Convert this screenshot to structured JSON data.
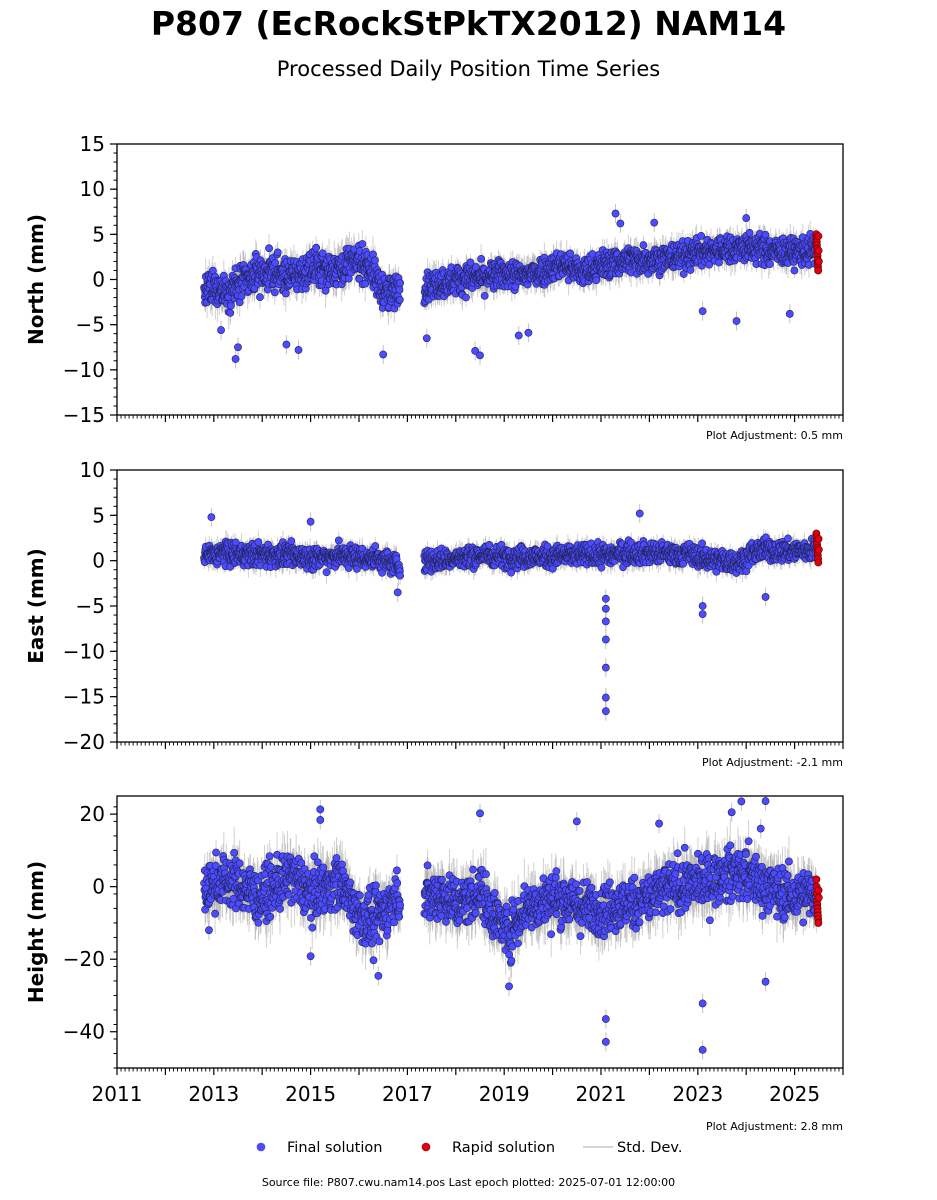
{
  "title": "P807 (EcRockStPkTX2012) NAM14",
  "subtitle": "Processed Daily Position Time Series",
  "source_text": "Source file: P807.cwu.nam14.pos  Last epoch plotted: 2025-07-01 12:00:00",
  "legend": [
    {
      "label": "Final solution",
      "color": "#4b4bff",
      "kind": "dot"
    },
    {
      "label": "Rapid solution",
      "color": "#e0000f",
      "kind": "dot"
    },
    {
      "label": "Std. Dev.",
      "color": "#c8c8c8",
      "kind": "line"
    }
  ],
  "colors": {
    "final": "#4b4bff",
    "rapid": "#e0000f",
    "stddev": "#9a9a9a"
  },
  "chart_data": [
    {
      "type": "scatter",
      "ylabel": "North (mm)",
      "ylim": [
        -15,
        15
      ],
      "yticks": [
        -15,
        -10,
        -5,
        0,
        5,
        10,
        15
      ],
      "xlim": [
        2011,
        2026
      ],
      "show_xtick_labels": false,
      "adjustment": "Plot Adjustment: 0.5 mm",
      "segments": [
        {
          "start": 2012.8,
          "end": 2016.85,
          "points": [
            [
              2012.8,
              -1.5
            ],
            [
              2013.0,
              -1.0
            ],
            [
              2013.3,
              -1.2
            ],
            [
              2013.6,
              -0.3
            ],
            [
              2013.9,
              0.6
            ],
            [
              2014.2,
              0.8
            ],
            [
              2014.5,
              0.3
            ],
            [
              2014.8,
              0.7
            ],
            [
              2015.1,
              1.4
            ],
            [
              2015.4,
              1.0
            ],
            [
              2015.7,
              1.6
            ],
            [
              2016.0,
              2.0
            ],
            [
              2016.2,
              1.6
            ],
            [
              2016.4,
              -0.5
            ],
            [
              2016.6,
              -1.8
            ],
            [
              2016.85,
              -0.8
            ]
          ],
          "spread": 2.4
        },
        {
          "start": 2017.35,
          "end": 2025.45,
          "points": [
            [
              2017.35,
              -0.8
            ],
            [
              2017.8,
              -0.3
            ],
            [
              2018.2,
              0.2
            ],
            [
              2018.6,
              0.2
            ],
            [
              2019.0,
              0.6
            ],
            [
              2019.4,
              0.4
            ],
            [
              2019.8,
              1.0
            ],
            [
              2020.2,
              1.8
            ],
            [
              2020.6,
              0.7
            ],
            [
              2021.0,
              1.6
            ],
            [
              2021.5,
              2.1
            ],
            [
              2022.0,
              2.3
            ],
            [
              2022.5,
              2.4
            ],
            [
              2023.0,
              3.0
            ],
            [
              2023.5,
              3.3
            ],
            [
              2024.0,
              3.6
            ],
            [
              2024.5,
              3.2
            ],
            [
              2025.0,
              3.0
            ],
            [
              2025.45,
              3.4
            ]
          ],
          "spread": 2.0
        }
      ],
      "outliers": [
        [
          2013.45,
          -8.8
        ],
        [
          2013.5,
          -7.5
        ],
        [
          2014.5,
          -7.2
        ],
        [
          2014.75,
          -7.8
        ],
        [
          2016.5,
          -8.3
        ],
        [
          2018.4,
          -7.9
        ],
        [
          2018.5,
          -8.4
        ],
        [
          2019.3,
          -6.2
        ],
        [
          2019.5,
          -5.9
        ],
        [
          2021.3,
          7.3
        ],
        [
          2023.1,
          -3.5
        ],
        [
          2023.8,
          -4.6
        ],
        [
          2024.9,
          -3.8
        ],
        [
          2013.15,
          -5.6
        ],
        [
          2017.4,
          -6.5
        ],
        [
          2021.4,
          6.2
        ],
        [
          2022.1,
          6.3
        ],
        [
          2024.0,
          6.8
        ]
      ],
      "rapid": {
        "start": 2025.45,
        "end": 2025.5,
        "values": [
          5.0,
          4.6,
          4.2,
          3.8,
          3.4,
          3.0,
          2.6,
          2.2,
          1.8,
          1.4,
          1.0,
          4.8,
          3.2,
          2.0
        ]
      }
    },
    {
      "type": "scatter",
      "ylabel": "East (mm)",
      "ylim": [
        -20,
        10
      ],
      "yticks": [
        -20,
        -15,
        -10,
        -5,
        0,
        5,
        10
      ],
      "xlim": [
        2011,
        2026
      ],
      "show_xtick_labels": false,
      "adjustment": "Plot Adjustment: -2.1 mm",
      "segments": [
        {
          "start": 2012.8,
          "end": 2016.85,
          "points": [
            [
              2012.8,
              0.5
            ],
            [
              2013.2,
              0.8
            ],
            [
              2013.6,
              0.6
            ],
            [
              2014.0,
              0.7
            ],
            [
              2014.4,
              0.6
            ],
            [
              2014.8,
              0.5
            ],
            [
              2015.2,
              0.3
            ],
            [
              2015.6,
              0.6
            ],
            [
              2016.0,
              0.4
            ],
            [
              2016.4,
              0.2
            ],
            [
              2016.85,
              -0.5
            ]
          ],
          "spread": 1.6
        },
        {
          "start": 2017.35,
          "end": 2025.45,
          "points": [
            [
              2017.35,
              0.0
            ],
            [
              2018.0,
              0.2
            ],
            [
              2018.6,
              0.6
            ],
            [
              2019.2,
              0.4
            ],
            [
              2019.8,
              0.4
            ],
            [
              2020.4,
              0.6
            ],
            [
              2021.0,
              0.6
            ],
            [
              2021.6,
              0.9
            ],
            [
              2022.2,
              0.8
            ],
            [
              2022.8,
              0.7
            ],
            [
              2023.2,
              0.2
            ],
            [
              2023.8,
              -0.2
            ],
            [
              2024.3,
              1.2
            ],
            [
              2024.8,
              1.0
            ],
            [
              2025.45,
              1.2
            ]
          ],
          "spread": 1.5
        }
      ],
      "outliers": [
        [
          2021.1,
          -4.2
        ],
        [
          2021.1,
          -5.3
        ],
        [
          2021.1,
          -6.7
        ],
        [
          2021.1,
          -8.7
        ],
        [
          2021.1,
          -11.8
        ],
        [
          2021.1,
          -15.1
        ],
        [
          2021.1,
          -16.6
        ],
        [
          2023.1,
          -5.0
        ],
        [
          2023.1,
          -5.9
        ],
        [
          2024.4,
          -4.0
        ],
        [
          2012.95,
          4.8
        ],
        [
          2021.8,
          5.2
        ],
        [
          2015.0,
          4.3
        ],
        [
          2016.8,
          -3.5
        ]
      ],
      "rapid": {
        "start": 2025.45,
        "end": 2025.5,
        "values": [
          3.0,
          2.6,
          2.2,
          1.8,
          1.4,
          1.0,
          0.6,
          0.2,
          -0.2,
          2.4,
          1.2
        ]
      }
    },
    {
      "type": "scatter",
      "ylabel": "Height (mm)",
      "ylim": [
        -50,
        25
      ],
      "yticks": [
        -40,
        -20,
        0,
        20
      ],
      "xlim": [
        2011,
        2026
      ],
      "xticks": [
        2011,
        2013,
        2015,
        2017,
        2019,
        2021,
        2023,
        2025
      ],
      "xtick_labels": [
        "2011",
        "2013",
        "2015",
        "2017",
        "2019",
        "2021",
        "2023",
        "2025"
      ],
      "show_xtick_labels": true,
      "adjustment": "Plot Adjustment: 2.8 mm",
      "segments": [
        {
          "start": 2012.8,
          "end": 2016.85,
          "points": [
            [
              2012.8,
              -2
            ],
            [
              2013.1,
              2
            ],
            [
              2013.5,
              1
            ],
            [
              2013.9,
              -3
            ],
            [
              2014.3,
              0
            ],
            [
              2014.6,
              3
            ],
            [
              2015.0,
              -2
            ],
            [
              2015.3,
              0
            ],
            [
              2015.6,
              2
            ],
            [
              2015.9,
              -6
            ],
            [
              2016.2,
              -10
            ],
            [
              2016.5,
              -7
            ],
            [
              2016.85,
              -2
            ]
          ],
          "spread": 9
        },
        {
          "start": 2017.35,
          "end": 2025.45,
          "points": [
            [
              2017.35,
              -3
            ],
            [
              2017.7,
              -2
            ],
            [
              2018.1,
              -5
            ],
            [
              2018.5,
              -1
            ],
            [
              2018.8,
              -8
            ],
            [
              2019.1,
              -13
            ],
            [
              2019.4,
              -6
            ],
            [
              2019.8,
              -4
            ],
            [
              2020.2,
              -3
            ],
            [
              2020.6,
              -6
            ],
            [
              2021.0,
              -6
            ],
            [
              2021.5,
              -5
            ],
            [
              2022.0,
              -3
            ],
            [
              2022.5,
              0
            ],
            [
              2023.0,
              1
            ],
            [
              2023.4,
              2
            ],
            [
              2023.8,
              4
            ],
            [
              2024.2,
              2
            ],
            [
              2024.6,
              -1
            ],
            [
              2025.0,
              -3
            ],
            [
              2025.45,
              -2
            ]
          ],
          "spread": 9
        }
      ],
      "outliers": [
        [
          2021.1,
          -36.5
        ],
        [
          2021.1,
          -42.8
        ],
        [
          2023.1,
          -32.2
        ],
        [
          2023.1,
          -45.0
        ],
        [
          2024.4,
          -26.2
        ],
        [
          2019.1,
          -27.5
        ],
        [
          2016.4,
          -24.6
        ],
        [
          2015.2,
          21.3
        ],
        [
          2015.2,
          18.4
        ],
        [
          2018.5,
          20.2
        ],
        [
          2023.7,
          20.5
        ],
        [
          2023.9,
          23.5
        ],
        [
          2024.4,
          23.6
        ],
        [
          2024.3,
          16.0
        ],
        [
          2015.0,
          -19.2
        ],
        [
          2016.3,
          -20.3
        ],
        [
          2022.2,
          17.4
        ],
        [
          2020.5,
          18.0
        ],
        [
          2012.9,
          -12.0
        ]
      ],
      "rapid": {
        "start": 2025.45,
        "end": 2025.5,
        "values": [
          2,
          0,
          -2,
          -4,
          -5,
          -6,
          -7,
          -8,
          -9,
          -10,
          -1,
          -3
        ]
      }
    }
  ]
}
